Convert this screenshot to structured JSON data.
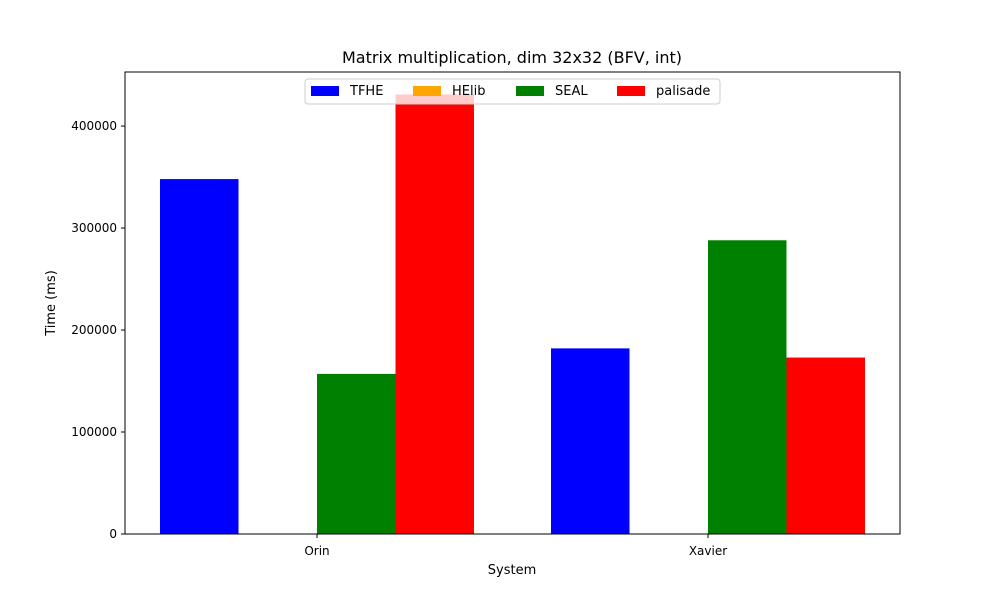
{
  "chart_data": {
    "type": "bar",
    "title": "Matrix multiplication, dim 32x32 (BFV, int)",
    "xlabel": "System",
    "ylabel": "Time (ms)",
    "categories": [
      "Orin",
      "Xavier"
    ],
    "series": [
      {
        "name": "TFHE",
        "color": "#0000ff",
        "values": [
          348000,
          182000
        ]
      },
      {
        "name": "HElib",
        "color": "#ffa500",
        "values": [
          0,
          0
        ]
      },
      {
        "name": "SEAL",
        "color": "#008000",
        "values": [
          157000,
          288000
        ]
      },
      {
        "name": "palisade",
        "color": "#ff0000",
        "values": [
          431000,
          173000
        ]
      }
    ],
    "ylim": [
      0,
      453000
    ],
    "yticks": [
      0,
      100000,
      200000,
      300000,
      400000
    ],
    "grid": false,
    "legend_position": "top-center"
  }
}
